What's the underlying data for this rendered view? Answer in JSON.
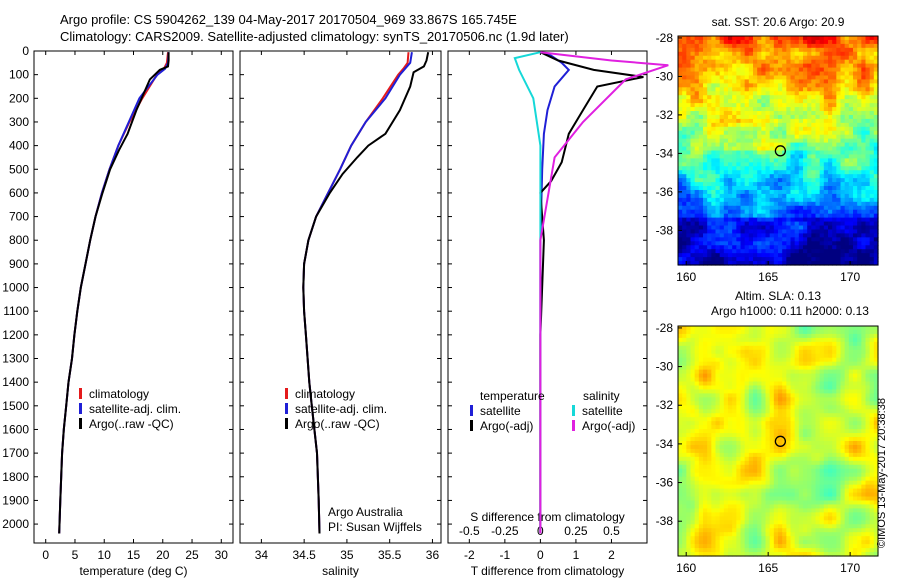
{
  "header": {
    "line1": "Argo profile: CS 5904262_139 04-May-2017 20170504_969 33.867S 165.745E",
    "line2": "Climatology: CARS2009. Satellite-adjusted climatology: synTS_20170506.nc (1.9d later)"
  },
  "colors": {
    "climatology": "#e41a1c",
    "satellite": "#1f1fd6",
    "argo": "#000000",
    "sat_salinity": "#16d8d8",
    "argo_adj_salinity": "#e020e0"
  },
  "credits": {
    "org": "Argo Australia",
    "pi": "PI: Susan Wijffels",
    "stamp": "©IMOS 13-May-2017 20:38:38"
  },
  "chart_data": [
    {
      "type": "line",
      "panel": "temperature",
      "xlabel": "temperature (deg C)",
      "ylabel": "",
      "xlim": [
        -2,
        32
      ],
      "ylim": [
        2080,
        0
      ],
      "xticks": [
        0,
        5,
        10,
        15,
        20,
        25,
        30
      ],
      "yticks": [
        0,
        100,
        200,
        300,
        400,
        500,
        600,
        700,
        800,
        900,
        1000,
        1100,
        1200,
        1300,
        1400,
        1500,
        1600,
        1700,
        1800,
        1900,
        2000
      ],
      "legend": [
        "climatology",
        "satellite-adj. clim.",
        "Argo(..raw -QC)"
      ],
      "series": [
        {
          "name": "climatology",
          "color": "#e41a1c",
          "x": [
            20.9,
            20.7,
            20.2,
            19.0,
            16.5,
            14.3,
            12.4,
            10.9,
            9.6,
            8.5,
            7.6,
            6.8,
            6.0,
            5.4,
            4.9,
            4.5,
            3.9,
            3.5,
            3.1,
            2.8,
            2.5,
            2.3
          ],
          "y": [
            5,
            50,
            75,
            100,
            200,
            300,
            400,
            500,
            600,
            700,
            800,
            900,
            1000,
            1100,
            1200,
            1300,
            1400,
            1500,
            1600,
            1700,
            1900,
            2040
          ]
        },
        {
          "name": "satellite-adj. clim.",
          "color": "#1f1fd6",
          "x": [
            21.0,
            20.9,
            20.4,
            19.1,
            16.0,
            14.2,
            12.4,
            10.9,
            9.6,
            8.5,
            7.6,
            6.8,
            6.0,
            5.4,
            4.9,
            4.5,
            3.9,
            3.5,
            3.1,
            2.8,
            2.5,
            2.3
          ],
          "y": [
            5,
            50,
            75,
            100,
            200,
            300,
            400,
            500,
            600,
            700,
            800,
            900,
            1000,
            1100,
            1200,
            1300,
            1400,
            1500,
            1600,
            1700,
            1900,
            2040
          ]
        },
        {
          "name": "Argo(..raw -QC)",
          "color": "#000000",
          "x": [
            21.0,
            21.0,
            20.9,
            19.5,
            17.8,
            15.5,
            14.0,
            12.5,
            11.0,
            9.7,
            8.5,
            7.6,
            6.8,
            6.0,
            5.4,
            4.9,
            4.5,
            3.9,
            3.5,
            3.1,
            2.8,
            2.5,
            2.3
          ],
          "y": [
            5,
            40,
            65,
            80,
            120,
            250,
            350,
            420,
            500,
            600,
            700,
            800,
            900,
            1000,
            1100,
            1200,
            1300,
            1400,
            1500,
            1600,
            1700,
            1900,
            2040
          ]
        }
      ]
    },
    {
      "type": "line",
      "panel": "salinity",
      "xlabel": "salinity",
      "ylabel": "",
      "xlim": [
        33.75,
        36.1
      ],
      "ylim": [
        2080,
        0
      ],
      "xticks": [
        34,
        34.5,
        35,
        35.5,
        36
      ],
      "legend": [
        "climatology",
        "satellite-adj. clim.",
        "Argo(..raw -QC)"
      ],
      "series": [
        {
          "name": "climatology",
          "color": "#e41a1c",
          "x": [
            35.72,
            35.71,
            35.66,
            35.6,
            35.42,
            35.22,
            35.05,
            34.92,
            34.78,
            34.64,
            34.55,
            34.5,
            34.49,
            34.5,
            34.52,
            34.54,
            34.56,
            34.59,
            34.62,
            34.65,
            34.67,
            34.68
          ],
          "y": [
            5,
            50,
            75,
            100,
            200,
            300,
            400,
            500,
            600,
            700,
            800,
            900,
            1000,
            1100,
            1200,
            1300,
            1400,
            1500,
            1600,
            1700,
            1900,
            2040
          ]
        },
        {
          "name": "satellite-adj. clim.",
          "color": "#1f1fd6",
          "x": [
            35.76,
            35.74,
            35.68,
            35.62,
            35.45,
            35.22,
            35.05,
            34.92,
            34.78,
            34.64,
            34.55,
            34.5,
            34.49,
            34.5,
            34.52,
            34.54,
            34.56,
            34.59,
            34.62,
            34.65,
            34.67,
            34.68
          ],
          "y": [
            5,
            50,
            75,
            100,
            200,
            300,
            400,
            500,
            600,
            700,
            800,
            900,
            1000,
            1100,
            1200,
            1300,
            1400,
            1500,
            1600,
            1700,
            1900,
            2040
          ]
        },
        {
          "name": "Argo(..raw -QC)",
          "color": "#000000",
          "x": [
            35.95,
            35.93,
            35.9,
            35.78,
            35.74,
            35.62,
            35.45,
            35.25,
            35.12,
            34.95,
            34.8,
            34.64,
            34.55,
            34.5,
            34.49,
            34.5,
            34.52,
            34.54,
            34.56,
            34.59,
            34.62,
            34.65,
            34.67,
            34.68
          ],
          "y": [
            5,
            40,
            65,
            90,
            150,
            250,
            350,
            400,
            450,
            520,
            600,
            700,
            800,
            900,
            1000,
            1100,
            1200,
            1300,
            1400,
            1500,
            1600,
            1700,
            1900,
            2040
          ]
        }
      ]
    },
    {
      "type": "line",
      "panel": "differences",
      "xlabel": "T difference from climatology",
      "title_bottom": "S difference from climatology",
      "xlim": [
        -2.6,
        3.0
      ],
      "ylim": [
        2080,
        0
      ],
      "xticks_T": [
        -2,
        -1,
        0,
        1,
        2
      ],
      "xticks_S": [
        -0.5,
        -0.25,
        0,
        0.25,
        0.5
      ],
      "legend_t_title": "temperature",
      "legend_s_title": "salinity",
      "legend": [
        "satellite",
        "Argo(-adj)",
        "satellite",
        "Argo(-adj)"
      ],
      "series": [
        {
          "name": "temperature satellite",
          "color": "#1f1fd6",
          "x": [
            0.0,
            0.3,
            0.6,
            0.8,
            0.4,
            0.2,
            0.1,
            0.05,
            0.0,
            0.0,
            0.0
          ],
          "y": [
            5,
            20,
            50,
            80,
            150,
            250,
            350,
            500,
            800,
            1200,
            2040
          ]
        },
        {
          "name": "temperature Argo(-adj)",
          "color": "#000000",
          "x": [
            0.0,
            0.5,
            1.5,
            2.9,
            1.6,
            1.2,
            0.8,
            0.6,
            0.3,
            0.0,
            0.1,
            0.0,
            0.0
          ],
          "y": [
            5,
            40,
            80,
            110,
            150,
            250,
            350,
            470,
            550,
            600,
            800,
            1200,
            2040
          ]
        },
        {
          "name": "salinity satellite",
          "color": "#16d8d8",
          "x": [
            0.0,
            -0.18,
            -0.15,
            -0.05,
            0.0,
            0.0,
            0.0
          ],
          "y": [
            5,
            30,
            80,
            200,
            400,
            800,
            2040
          ]
        },
        {
          "name": "salinity Argo(-adj)",
          "color": "#e020e0",
          "x": [
            0.0,
            0.5,
            0.9,
            0.6,
            0.3,
            0.1,
            0.0,
            0.0
          ],
          "y": [
            5,
            40,
            60,
            120,
            300,
            450,
            800,
            2040
          ]
        }
      ]
    },
    {
      "type": "heatmap",
      "panel": "sst-map",
      "title": "sat. SST: 20.6 Argo: 20.9",
      "xlim": [
        159.5,
        171.7
      ],
      "ylim": [
        -39.8,
        -27.9
      ],
      "xticks": [
        160,
        165,
        170
      ],
      "yticks": [
        -28,
        -30,
        -32,
        -34,
        -36,
        -38
      ],
      "marker": {
        "lon": 165.745,
        "lat": -33.867
      }
    },
    {
      "type": "heatmap",
      "panel": "sla-map",
      "title_line1": "Altim. SLA: 0.13",
      "title_line2": "Argo h1000: 0.11 h2000: 0.13",
      "xlim": [
        159.5,
        171.7
      ],
      "ylim": [
        -39.8,
        -27.9
      ],
      "xticks": [
        160,
        165,
        170
      ],
      "yticks": [
        -28,
        -30,
        -32,
        -34,
        -36,
        -38
      ],
      "marker": {
        "lon": 165.745,
        "lat": -33.867
      }
    }
  ]
}
